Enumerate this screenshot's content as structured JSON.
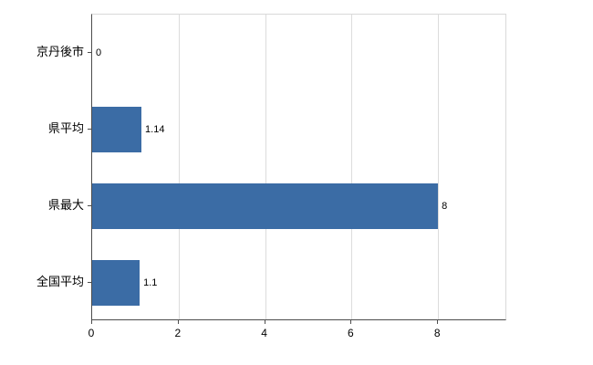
{
  "chart_data": {
    "type": "bar",
    "orientation": "horizontal",
    "title": "",
    "xlabel": "",
    "ylabel": "",
    "categories": [
      "京丹後市",
      "県平均",
      "県最大",
      "全国平均"
    ],
    "values": [
      0,
      1.14,
      8,
      1.1
    ],
    "value_labels": [
      "0",
      "1.14",
      "8",
      "1.1"
    ],
    "x_ticks": [
      0,
      2,
      4,
      6,
      8
    ],
    "xlim": [
      0,
      9.6
    ],
    "grid": true,
    "legend": "none",
    "bar_color": "#3b6ca5",
    "gridline_color": "#dcdcdc",
    "axis_color": "#4d4d4d",
    "background_color": "#ffffff"
  }
}
